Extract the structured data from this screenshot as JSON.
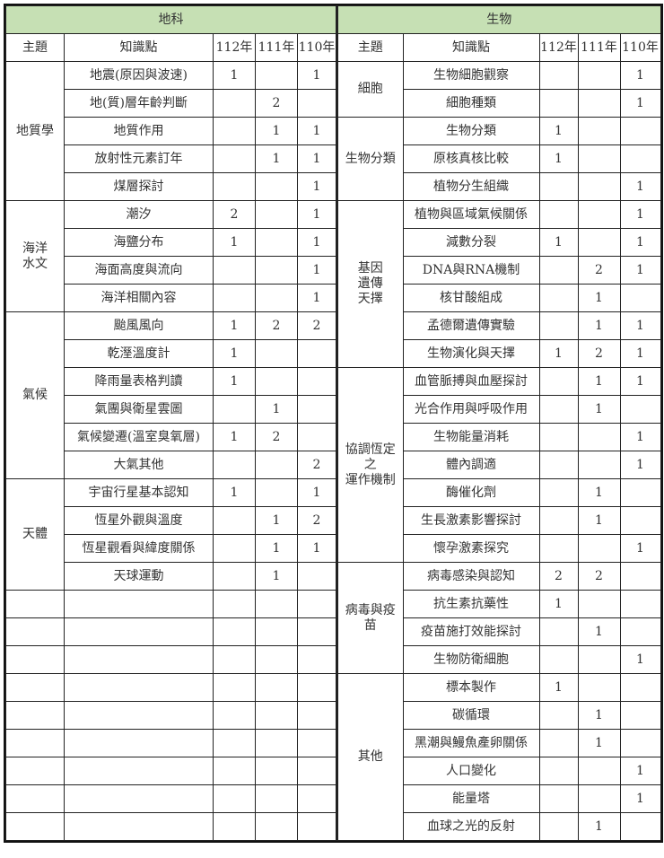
{
  "left": {
    "title": "地科",
    "headers": [
      "主題",
      "知識點",
      "112年",
      "111年",
      "110年"
    ],
    "groups": [
      {
        "topic": "地質學",
        "rows": [
          [
            "地震(原因與波速)",
            "1",
            "",
            "1"
          ],
          [
            "地(質)層年齡判斷",
            "",
            "2",
            ""
          ],
          [
            "地質作用",
            "",
            "1",
            "1"
          ],
          [
            "放射性元素訂年",
            "",
            "1",
            "1"
          ],
          [
            "煤層探討",
            "",
            "",
            "1"
          ]
        ]
      },
      {
        "topic": "海洋\n水文",
        "rows": [
          [
            "潮汐",
            "2",
            "",
            "1"
          ],
          [
            "海鹽分布",
            "1",
            "",
            "1"
          ],
          [
            "海面高度與流向",
            "",
            "",
            "1"
          ],
          [
            "海洋相關內容",
            "",
            "",
            "1"
          ]
        ]
      },
      {
        "topic": "氣候",
        "rows": [
          [
            "颱風風向",
            "1",
            "2",
            "2"
          ],
          [
            "乾溼溫度計",
            "1",
            "",
            ""
          ],
          [
            "降雨量表格判讀",
            "1",
            "",
            ""
          ],
          [
            "氣團與衛星雲圖",
            "",
            "1",
            ""
          ],
          [
            "氣候變遷(溫室臭氧層)",
            "1",
            "2",
            ""
          ],
          [
            "大氣其他",
            "",
            "",
            "2"
          ]
        ]
      },
      {
        "topic": "天體",
        "rows": [
          [
            "宇宙行星基本認知",
            "1",
            "",
            "1"
          ],
          [
            "恆星外觀與溫度",
            "",
            "1",
            "2"
          ],
          [
            "恆星觀看與緯度關係",
            "",
            "1",
            "1"
          ],
          [
            "天球運動",
            "",
            "1",
            ""
          ]
        ]
      },
      {
        "topic": "",
        "rows": [
          [
            "",
            "",
            "",
            ""
          ]
        ]
      },
      {
        "topic": "",
        "rows": [
          [
            "",
            "",
            "",
            ""
          ]
        ]
      },
      {
        "topic": "",
        "rows": [
          [
            "",
            "",
            "",
            ""
          ]
        ]
      },
      {
        "topic": "",
        "rows": [
          [
            "",
            "",
            "",
            ""
          ]
        ]
      },
      {
        "topic": "",
        "rows": [
          [
            "",
            "",
            "",
            ""
          ]
        ]
      },
      {
        "topic": "",
        "rows": [
          [
            "",
            "",
            "",
            ""
          ]
        ]
      },
      {
        "topic": "",
        "rows": [
          [
            "",
            "",
            "",
            ""
          ]
        ]
      },
      {
        "topic": "",
        "rows": [
          [
            "",
            "",
            "",
            ""
          ]
        ]
      },
      {
        "topic": "",
        "rows": [
          [
            "",
            "",
            "",
            ""
          ]
        ]
      }
    ]
  },
  "right": {
    "title": "生物",
    "headers": [
      "主題",
      "知識點",
      "112年",
      "111年",
      "110年"
    ],
    "groups": [
      {
        "topic": "細胞",
        "rows": [
          [
            "生物細胞觀察",
            "",
            "",
            "1"
          ],
          [
            "細胞種類",
            "",
            "",
            "1"
          ]
        ]
      },
      {
        "topic": "生物分類",
        "rows": [
          [
            "生物分類",
            "1",
            "",
            ""
          ],
          [
            "原核真核比較",
            "1",
            "",
            ""
          ],
          [
            "植物分生組織",
            "",
            "",
            "1"
          ]
        ]
      },
      {
        "topic": "基因\n遺傳\n天擇",
        "rows": [
          [
            "植物與區域氣候關係",
            "",
            "",
            "1"
          ],
          [
            "減數分裂",
            "1",
            "",
            "1"
          ],
          [
            "DNA與RNA機制",
            "",
            "2",
            "1"
          ],
          [
            "核甘酸組成",
            "",
            "1",
            ""
          ],
          [
            "孟德爾遺傳實驗",
            "",
            "1",
            "1"
          ],
          [
            "生物演化與天擇",
            "1",
            "2",
            "1"
          ]
        ]
      },
      {
        "topic": "協調恆定\n之\n運作機制",
        "rows": [
          [
            "血管脈搏與血壓探討",
            "",
            "1",
            "1"
          ],
          [
            "光合作用與呼吸作用",
            "",
            "1",
            ""
          ],
          [
            "生物能量消耗",
            "",
            "",
            "1"
          ],
          [
            "體內調適",
            "",
            "",
            "1"
          ],
          [
            "酶催化劑",
            "",
            "1",
            ""
          ],
          [
            "生長激素影響探討",
            "",
            "1",
            ""
          ],
          [
            "懷孕激素探究",
            "",
            "",
            "1"
          ]
        ]
      },
      {
        "topic": "病毒與疫\n苗",
        "rows": [
          [
            "病毒感染與認知",
            "2",
            "2",
            ""
          ],
          [
            "抗生素抗藥性",
            "1",
            "",
            ""
          ],
          [
            "疫苗施打效能探討",
            "",
            "1",
            ""
          ],
          [
            "生物防衛細胞",
            "",
            "",
            "1"
          ]
        ]
      },
      {
        "topic": "其他",
        "rows": [
          [
            "標本製作",
            "1",
            "",
            ""
          ],
          [
            "碳循環",
            "",
            "1",
            ""
          ],
          [
            "黑潮與鰻魚產卵關係",
            "",
            "1",
            ""
          ],
          [
            "人口變化",
            "",
            "",
            "1"
          ],
          [
            "能量塔",
            "",
            "",
            "1"
          ],
          [
            "血球之光的反射",
            "",
            "1",
            ""
          ]
        ]
      }
    ]
  }
}
